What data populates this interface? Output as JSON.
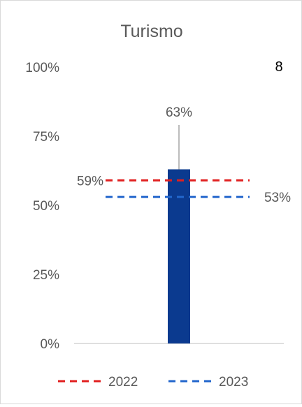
{
  "chart_data": {
    "type": "bar",
    "title": "Turismo",
    "badge": "8",
    "ylim": [
      0,
      100
    ],
    "yticks": [
      "0%",
      "25%",
      "50%",
      "75%",
      "100%"
    ],
    "ytick_values": [
      0,
      25,
      50,
      75,
      100
    ],
    "categories": [
      ""
    ],
    "values": [
      63
    ],
    "bar_label": "63%",
    "reference_lines": [
      {
        "name": "2022",
        "value": 59,
        "label": "59%",
        "color": "#e11f1f"
      },
      {
        "name": "2023",
        "value": 53,
        "label": "53%",
        "color": "#2266cc"
      }
    ],
    "colors": {
      "bar": "#0b3a8f",
      "axis": "#bfbfbf",
      "leader": "#a6a6a6",
      "text": "#595959"
    },
    "legend": "bottom"
  }
}
